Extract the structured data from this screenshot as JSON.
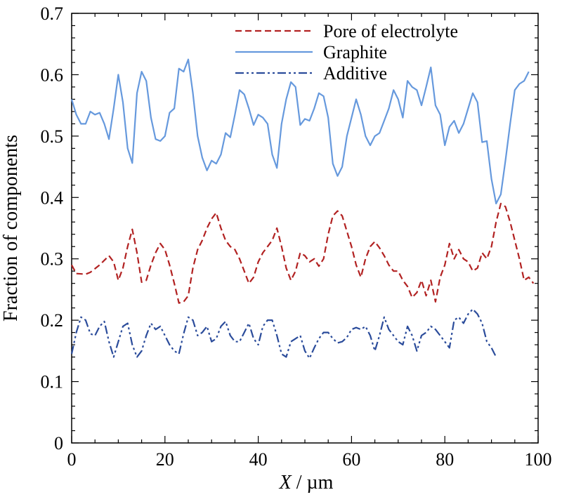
{
  "chart_data": {
    "type": "line",
    "xlabel": {
      "italic": "X",
      "rest": " / µm"
    },
    "ylabel": "Fraction of components",
    "xlim": [
      0,
      100
    ],
    "ylim": [
      0,
      0.7
    ],
    "x_ticks": [
      0,
      20,
      40,
      60,
      80,
      100
    ],
    "x_tick_labels": [
      "0",
      "20",
      "40",
      "60",
      "80",
      "100"
    ],
    "y_ticks": [
      0,
      0.1,
      0.2,
      0.3,
      0.4,
      0.5,
      0.6,
      0.7
    ],
    "y_tick_labels": [
      "0",
      "0.1",
      "0.2",
      "0.3",
      "0.4",
      "0.5",
      "0.6",
      "0.7"
    ],
    "grid": false,
    "legend_position": "top-right",
    "series": [
      {
        "name": "Pore of electrolyte",
        "color": "#b22222",
        "dash": "dashed",
        "points": [
          [
            0,
            0.29
          ],
          [
            1,
            0.276
          ],
          [
            3,
            0.275
          ],
          [
            4,
            0.278
          ],
          [
            6,
            0.29
          ],
          [
            8,
            0.305
          ],
          [
            9,
            0.295
          ],
          [
            10,
            0.265
          ],
          [
            11,
            0.285
          ],
          [
            12,
            0.32
          ],
          [
            13,
            0.348
          ],
          [
            14,
            0.31
          ],
          [
            15,
            0.262
          ],
          [
            16,
            0.265
          ],
          [
            17,
            0.29
          ],
          [
            18,
            0.31
          ],
          [
            19,
            0.325
          ],
          [
            20,
            0.315
          ],
          [
            21,
            0.29
          ],
          [
            22,
            0.26
          ],
          [
            23,
            0.228
          ],
          [
            24,
            0.23
          ],
          [
            25,
            0.24
          ],
          [
            26,
            0.285
          ],
          [
            27,
            0.315
          ],
          [
            28,
            0.33
          ],
          [
            29,
            0.35
          ],
          [
            30,
            0.365
          ],
          [
            31,
            0.375
          ],
          [
            32,
            0.35
          ],
          [
            33,
            0.33
          ],
          [
            34,
            0.32
          ],
          [
            35,
            0.315
          ],
          [
            36,
            0.3
          ],
          [
            37,
            0.28
          ],
          [
            38,
            0.26
          ],
          [
            39,
            0.27
          ],
          [
            40,
            0.295
          ],
          [
            41,
            0.31
          ],
          [
            42,
            0.32
          ],
          [
            43,
            0.33
          ],
          [
            44,
            0.35
          ],
          [
            45,
            0.32
          ],
          [
            46,
            0.285
          ],
          [
            47,
            0.265
          ],
          [
            48,
            0.28
          ],
          [
            49,
            0.31
          ],
          [
            50,
            0.305
          ],
          [
            51,
            0.295
          ],
          [
            52,
            0.3
          ],
          [
            53,
            0.288
          ],
          [
            54,
            0.3
          ],
          [
            55,
            0.34
          ],
          [
            56,
            0.37
          ],
          [
            57,
            0.378
          ],
          [
            58,
            0.37
          ],
          [
            59,
            0.345
          ],
          [
            60,
            0.32
          ],
          [
            61,
            0.29
          ],
          [
            62,
            0.27
          ],
          [
            63,
            0.3
          ],
          [
            64,
            0.32
          ],
          [
            65,
            0.328
          ],
          [
            66,
            0.318
          ],
          [
            67,
            0.305
          ],
          [
            68,
            0.29
          ],
          [
            69,
            0.28
          ],
          [
            70,
            0.28
          ],
          [
            71,
            0.265
          ],
          [
            72,
            0.255
          ],
          [
            73,
            0.237
          ],
          [
            74,
            0.245
          ],
          [
            75,
            0.265
          ],
          [
            76,
            0.24
          ],
          [
            77,
            0.265
          ],
          [
            78,
            0.23
          ],
          [
            79,
            0.27
          ],
          [
            80,
            0.29
          ],
          [
            81,
            0.325
          ],
          [
            82,
            0.3
          ],
          [
            83,
            0.315
          ],
          [
            84,
            0.3
          ],
          [
            85,
            0.295
          ],
          [
            86,
            0.28
          ],
          [
            87,
            0.285
          ],
          [
            88,
            0.31
          ],
          [
            89,
            0.3
          ],
          [
            90,
            0.32
          ],
          [
            91,
            0.36
          ],
          [
            92,
            0.39
          ],
          [
            93,
            0.385
          ],
          [
            94,
            0.36
          ],
          [
            95,
            0.33
          ],
          [
            96,
            0.3
          ],
          [
            97,
            0.265
          ],
          [
            98,
            0.27
          ],
          [
            99,
            0.26
          ]
        ]
      },
      {
        "name": "Graphite",
        "color": "#6699dd",
        "dash": "solid",
        "points": [
          [
            0,
            0.56
          ],
          [
            1,
            0.535
          ],
          [
            2,
            0.52
          ],
          [
            3,
            0.52
          ],
          [
            4,
            0.54
          ],
          [
            5,
            0.535
          ],
          [
            6,
            0.538
          ],
          [
            7,
            0.52
          ],
          [
            8,
            0.495
          ],
          [
            9,
            0.545
          ],
          [
            10,
            0.6
          ],
          [
            11,
            0.555
          ],
          [
            12,
            0.48
          ],
          [
            13,
            0.456
          ],
          [
            14,
            0.57
          ],
          [
            15,
            0.605
          ],
          [
            16,
            0.59
          ],
          [
            17,
            0.53
          ],
          [
            18,
            0.495
          ],
          [
            19,
            0.492
          ],
          [
            20,
            0.5
          ],
          [
            21,
            0.538
          ],
          [
            22,
            0.545
          ],
          [
            23,
            0.61
          ],
          [
            24,
            0.605
          ],
          [
            25,
            0.625
          ],
          [
            26,
            0.57
          ],
          [
            27,
            0.5
          ],
          [
            28,
            0.465
          ],
          [
            29,
            0.444
          ],
          [
            30,
            0.46
          ],
          [
            31,
            0.455
          ],
          [
            32,
            0.47
          ],
          [
            33,
            0.505
          ],
          [
            34,
            0.498
          ],
          [
            35,
            0.535
          ],
          [
            36,
            0.575
          ],
          [
            37,
            0.568
          ],
          [
            38,
            0.545
          ],
          [
            39,
            0.518
          ],
          [
            40,
            0.535
          ],
          [
            41,
            0.53
          ],
          [
            42,
            0.52
          ],
          [
            43,
            0.47
          ],
          [
            44,
            0.448
          ],
          [
            45,
            0.52
          ],
          [
            46,
            0.56
          ],
          [
            47,
            0.588
          ],
          [
            48,
            0.58
          ],
          [
            49,
            0.518
          ],
          [
            50,
            0.528
          ],
          [
            51,
            0.525
          ],
          [
            52,
            0.545
          ],
          [
            53,
            0.57
          ],
          [
            54,
            0.565
          ],
          [
            55,
            0.53
          ],
          [
            56,
            0.455
          ],
          [
            57,
            0.435
          ],
          [
            58,
            0.45
          ],
          [
            59,
            0.5
          ],
          [
            60,
            0.53
          ],
          [
            61,
            0.56
          ],
          [
            62,
            0.535
          ],
          [
            63,
            0.5
          ],
          [
            64,
            0.485
          ],
          [
            65,
            0.5
          ],
          [
            66,
            0.505
          ],
          [
            67,
            0.525
          ],
          [
            68,
            0.545
          ],
          [
            69,
            0.575
          ],
          [
            70,
            0.56
          ],
          [
            71,
            0.53
          ],
          [
            72,
            0.59
          ],
          [
            73,
            0.58
          ],
          [
            74,
            0.575
          ],
          [
            75,
            0.55
          ],
          [
            76,
            0.58
          ],
          [
            77,
            0.612
          ],
          [
            78,
            0.55
          ],
          [
            79,
            0.535
          ],
          [
            80,
            0.485
          ],
          [
            81,
            0.515
          ],
          [
            82,
            0.525
          ],
          [
            83,
            0.505
          ],
          [
            84,
            0.52
          ],
          [
            85,
            0.545
          ],
          [
            86,
            0.57
          ],
          [
            87,
            0.555
          ],
          [
            88,
            0.49
          ],
          [
            89,
            0.492
          ],
          [
            90,
            0.43
          ],
          [
            91,
            0.39
          ],
          [
            92,
            0.405
          ],
          [
            93,
            0.46
          ],
          [
            94,
            0.52
          ],
          [
            95,
            0.575
          ],
          [
            96,
            0.585
          ],
          [
            97,
            0.59
          ],
          [
            98,
            0.605
          ]
        ]
      },
      {
        "name": "Additive",
        "color": "#2b4c9b",
        "dash": "dash-dot-dot",
        "points": [
          [
            0,
            0.145
          ],
          [
            1,
            0.18
          ],
          [
            2,
            0.205
          ],
          [
            3,
            0.2
          ],
          [
            4,
            0.178
          ],
          [
            5,
            0.175
          ],
          [
            6,
            0.19
          ],
          [
            7,
            0.198
          ],
          [
            8,
            0.165
          ],
          [
            9,
            0.14
          ],
          [
            10,
            0.165
          ],
          [
            11,
            0.19
          ],
          [
            12,
            0.195
          ],
          [
            13,
            0.16
          ],
          [
            14,
            0.14
          ],
          [
            15,
            0.15
          ],
          [
            16,
            0.175
          ],
          [
            17,
            0.195
          ],
          [
            18,
            0.185
          ],
          [
            19,
            0.19
          ],
          [
            20,
            0.175
          ],
          [
            21,
            0.16
          ],
          [
            22,
            0.15
          ],
          [
            23,
            0.145
          ],
          [
            24,
            0.178
          ],
          [
            25,
            0.205
          ],
          [
            26,
            0.2
          ],
          [
            27,
            0.175
          ],
          [
            28,
            0.18
          ],
          [
            29,
            0.19
          ],
          [
            30,
            0.165
          ],
          [
            31,
            0.17
          ],
          [
            32,
            0.19
          ],
          [
            33,
            0.198
          ],
          [
            34,
            0.175
          ],
          [
            35,
            0.165
          ],
          [
            36,
            0.165
          ],
          [
            37,
            0.18
          ],
          [
            38,
            0.195
          ],
          [
            39,
            0.17
          ],
          [
            40,
            0.16
          ],
          [
            41,
            0.19
          ],
          [
            42,
            0.2
          ],
          [
            43,
            0.2
          ],
          [
            44,
            0.175
          ],
          [
            45,
            0.145
          ],
          [
            46,
            0.14
          ],
          [
            47,
            0.165
          ],
          [
            48,
            0.17
          ],
          [
            49,
            0.175
          ],
          [
            50,
            0.15
          ],
          [
            51,
            0.138
          ],
          [
            52,
            0.155
          ],
          [
            53,
            0.17
          ],
          [
            54,
            0.18
          ],
          [
            55,
            0.18
          ],
          [
            56,
            0.17
          ],
          [
            57,
            0.163
          ],
          [
            58,
            0.165
          ],
          [
            59,
            0.172
          ],
          [
            60,
            0.185
          ],
          [
            61,
            0.188
          ],
          [
            62,
            0.185
          ],
          [
            63,
            0.19
          ],
          [
            64,
            0.175
          ],
          [
            65,
            0.15
          ],
          [
            66,
            0.175
          ],
          [
            67,
            0.205
          ],
          [
            68,
            0.185
          ],
          [
            69,
            0.175
          ],
          [
            70,
            0.165
          ],
          [
            71,
            0.16
          ],
          [
            72,
            0.19
          ],
          [
            73,
            0.175
          ],
          [
            74,
            0.15
          ],
          [
            75,
            0.175
          ],
          [
            76,
            0.18
          ],
          [
            77,
            0.19
          ],
          [
            78,
            0.185
          ],
          [
            79,
            0.175
          ],
          [
            80,
            0.165
          ],
          [
            81,
            0.155
          ],
          [
            82,
            0.2
          ],
          [
            83,
            0.205
          ],
          [
            84,
            0.195
          ],
          [
            85,
            0.21
          ],
          [
            86,
            0.218
          ],
          [
            87,
            0.21
          ],
          [
            88,
            0.195
          ],
          [
            89,
            0.165
          ],
          [
            90,
            0.155
          ],
          [
            91,
            0.14
          ]
        ]
      }
    ]
  }
}
